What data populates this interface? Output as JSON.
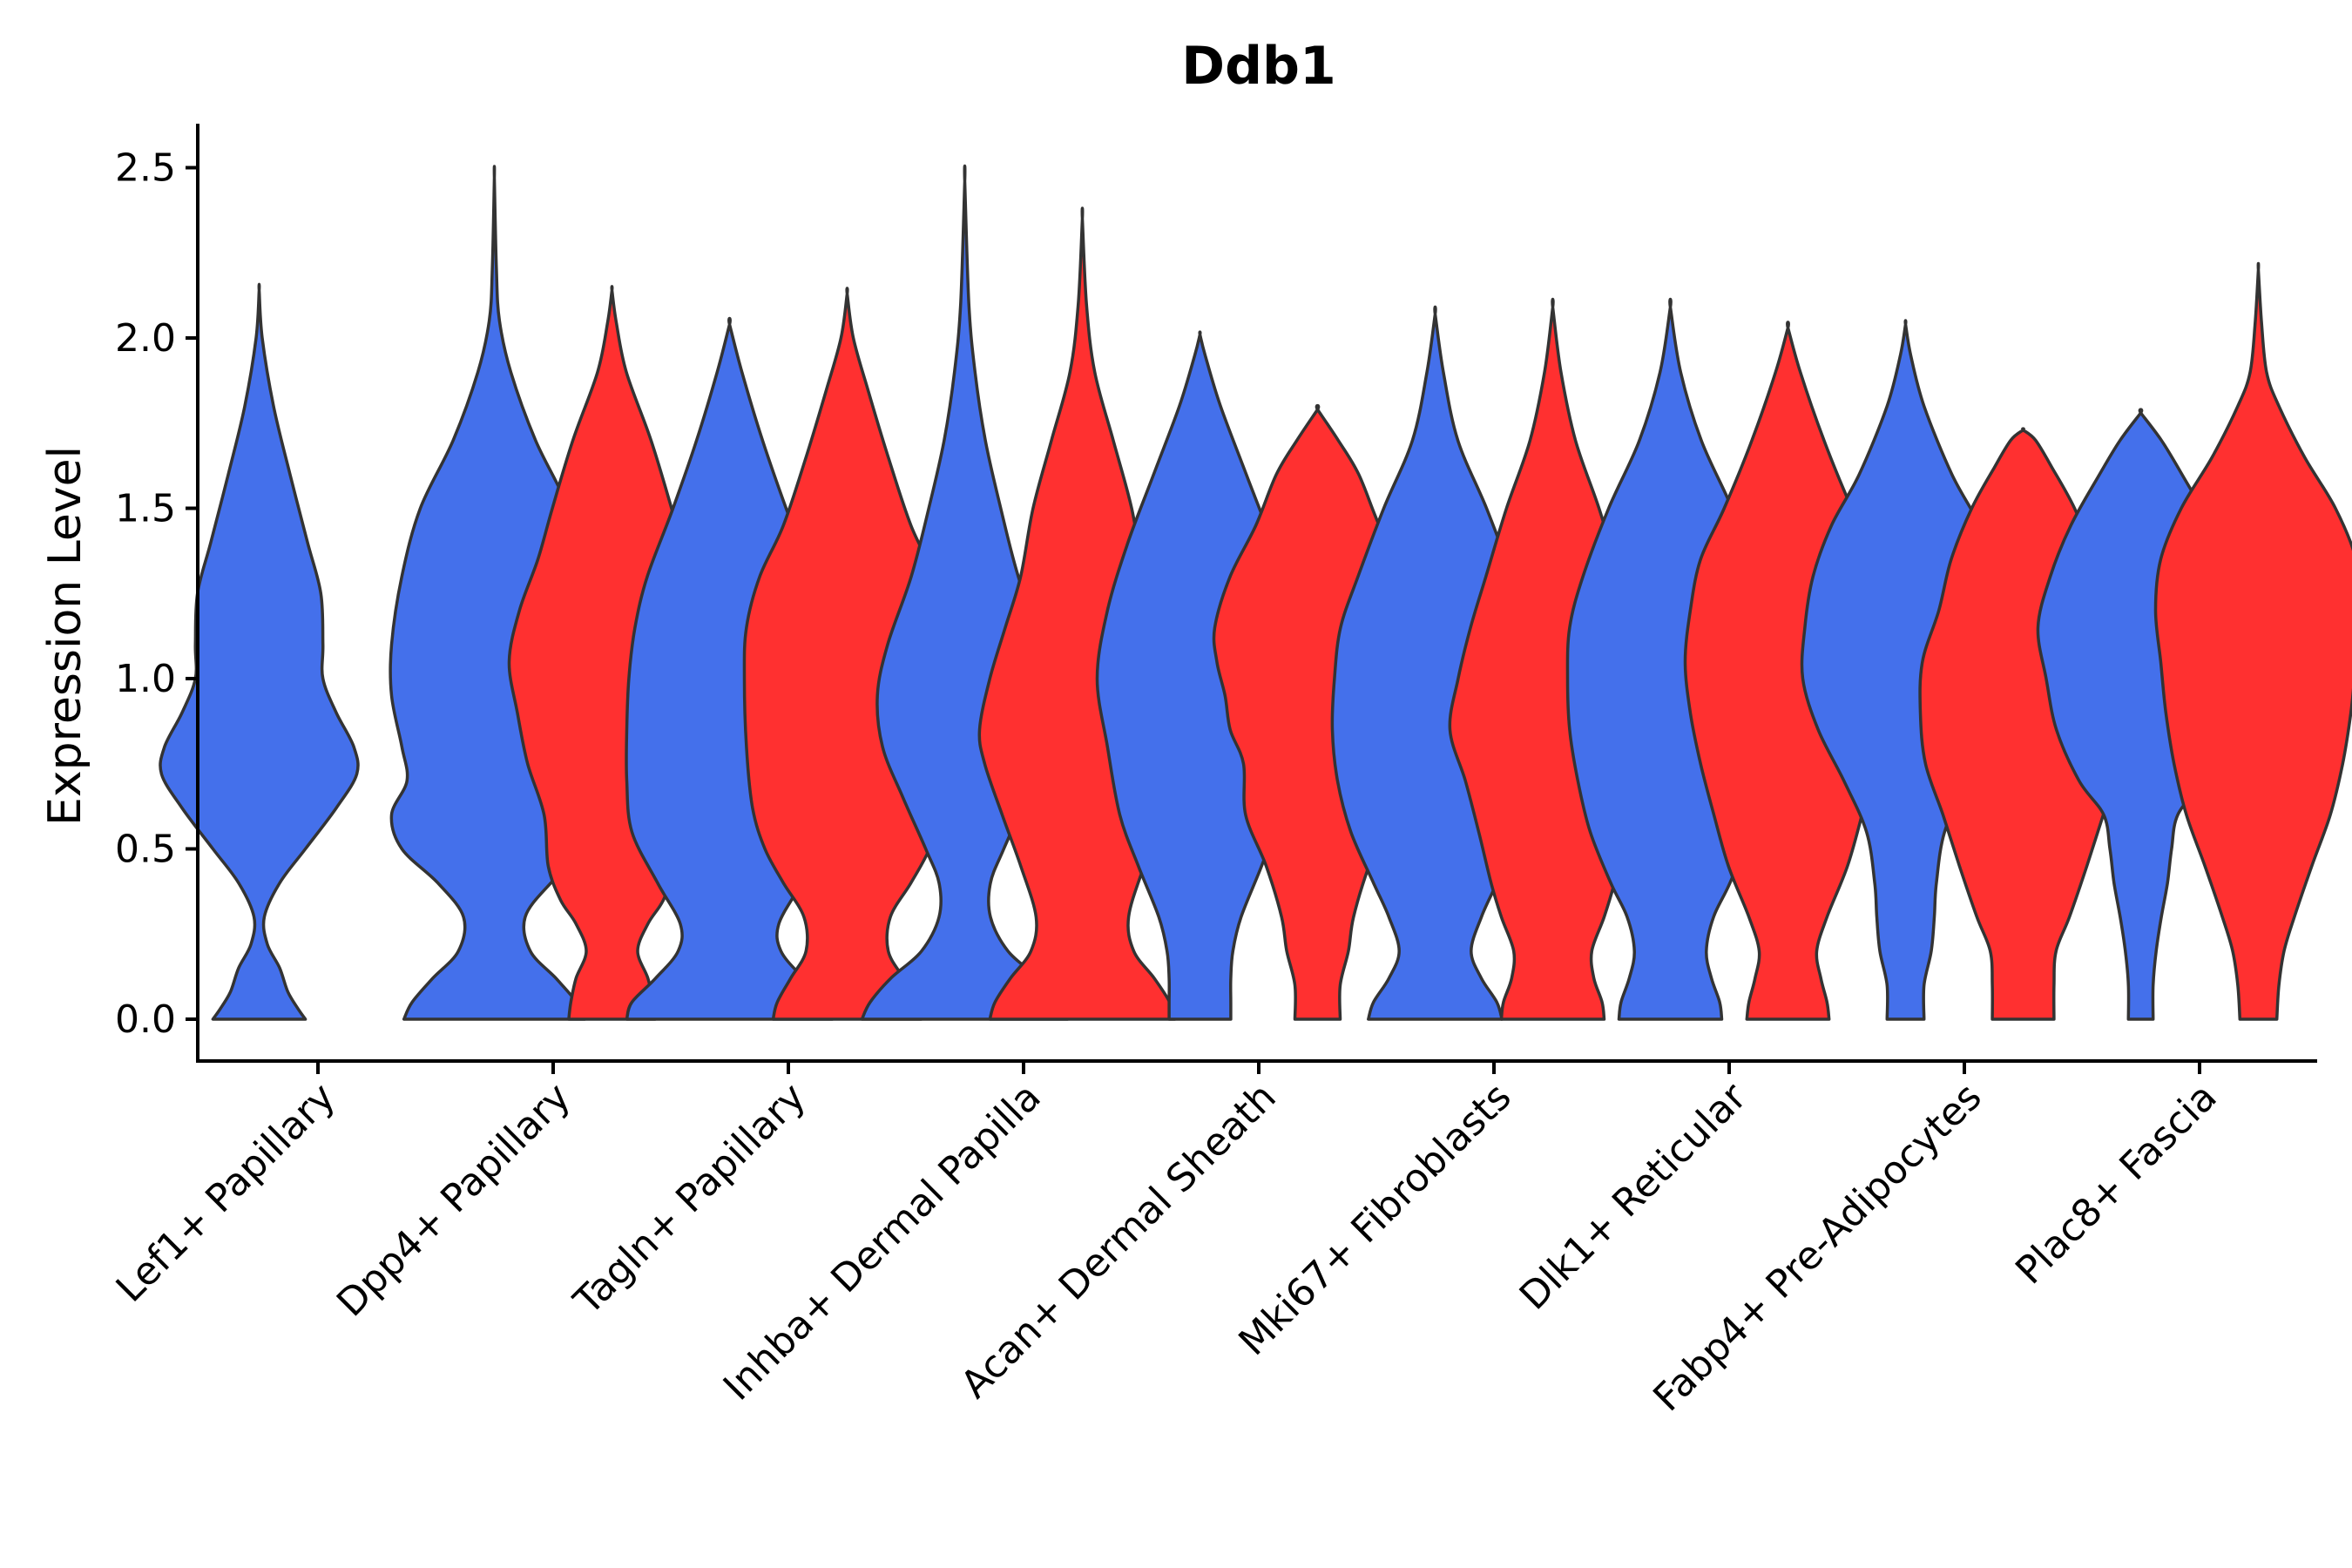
{
  "chart_data": {
    "type": "violin",
    "title": "Ddb1",
    "xlabel": "",
    "ylabel": "Expression Level",
    "ylim": [
      -0.12,
      2.6
    ],
    "yticks": [
      "0.0",
      "0.5",
      "1.0",
      "1.5",
      "2.0",
      "2.5"
    ],
    "ytick_values": [
      0.0,
      0.5,
      1.0,
      1.5,
      2.0,
      2.5
    ],
    "grid": false,
    "legend": "none",
    "groups": [
      {
        "name": "group-blue",
        "color": "#4470EB"
      },
      {
        "name": "group-red",
        "color": "#FF3030"
      }
    ],
    "categories": [
      "Lef1+ Papillary",
      "Dpp4+ Papillary",
      "Tagln+ Papillary",
      "Inhba+ Dermal Papilla",
      "Acan+ Dermal Sheath",
      "Mki67+ Fibroblasts",
      "Dlk1+ Reticular",
      "Fabp4+ Pre-Adipocytes",
      "Plac8+ Fascia"
    ],
    "violins": [
      {
        "category": "Lef1+ Papillary",
        "group": "group-blue",
        "max": 2.14,
        "profile": [
          [
            0.0,
            0.45
          ],
          [
            0.03,
            0.38
          ],
          [
            0.08,
            0.28
          ],
          [
            0.15,
            0.2
          ],
          [
            0.22,
            0.08
          ],
          [
            0.3,
            0.05
          ],
          [
            0.4,
            0.2
          ],
          [
            0.5,
            0.45
          ],
          [
            0.62,
            0.75
          ],
          [
            0.72,
            0.95
          ],
          [
            0.8,
            0.92
          ],
          [
            0.9,
            0.75
          ],
          [
            1.0,
            0.62
          ],
          [
            1.1,
            0.62
          ],
          [
            1.25,
            0.6
          ],
          [
            1.4,
            0.47
          ],
          [
            1.6,
            0.3
          ],
          [
            1.8,
            0.14
          ],
          [
            2.0,
            0.03
          ],
          [
            2.14,
            0.0
          ]
        ]
      },
      {
        "category": "Dpp4+ Papillary",
        "group": "group-blue",
        "max": 2.47,
        "profile": [
          [
            0.0,
            0.88
          ],
          [
            0.05,
            0.8
          ],
          [
            0.12,
            0.6
          ],
          [
            0.2,
            0.35
          ],
          [
            0.3,
            0.3
          ],
          [
            0.4,
            0.55
          ],
          [
            0.5,
            0.9
          ],
          [
            0.6,
            1.0
          ],
          [
            0.7,
            0.85
          ],
          [
            0.8,
            0.9
          ],
          [
            0.95,
            1.0
          ],
          [
            1.1,
            1.0
          ],
          [
            1.3,
            0.9
          ],
          [
            1.5,
            0.72
          ],
          [
            1.7,
            0.4
          ],
          [
            1.9,
            0.16
          ],
          [
            2.05,
            0.05
          ],
          [
            2.2,
            0.02
          ],
          [
            2.47,
            0.0
          ]
        ]
      },
      {
        "category": "Dpp4+ Papillary",
        "group": "group-red",
        "max": 2.14,
        "profile": [
          [
            0.0,
            0.42
          ],
          [
            0.05,
            0.4
          ],
          [
            0.12,
            0.35
          ],
          [
            0.2,
            0.25
          ],
          [
            0.28,
            0.35
          ],
          [
            0.35,
            0.5
          ],
          [
            0.45,
            0.62
          ],
          [
            0.6,
            0.66
          ],
          [
            0.75,
            0.82
          ],
          [
            0.9,
            0.92
          ],
          [
            1.05,
            1.0
          ],
          [
            1.2,
            0.9
          ],
          [
            1.35,
            0.72
          ],
          [
            1.5,
            0.58
          ],
          [
            1.7,
            0.38
          ],
          [
            1.9,
            0.14
          ],
          [
            2.05,
            0.04
          ],
          [
            2.14,
            0.0
          ]
        ]
      },
      {
        "category": "Tagln+ Papillary",
        "group": "group-blue",
        "max": 2.04,
        "profile": [
          [
            0.0,
            1.0
          ],
          [
            0.05,
            0.95
          ],
          [
            0.12,
            0.72
          ],
          [
            0.2,
            0.5
          ],
          [
            0.28,
            0.48
          ],
          [
            0.4,
            0.7
          ],
          [
            0.55,
            0.95
          ],
          [
            0.7,
            1.0
          ],
          [
            0.85,
            1.0
          ],
          [
            1.0,
            0.98
          ],
          [
            1.15,
            0.92
          ],
          [
            1.3,
            0.8
          ],
          [
            1.5,
            0.55
          ],
          [
            1.7,
            0.32
          ],
          [
            1.9,
            0.12
          ],
          [
            2.04,
            0.0
          ]
        ]
      },
      {
        "category": "Tagln+ Papillary",
        "group": "group-red",
        "max": 2.13,
        "profile": [
          [
            0.0,
            0.72
          ],
          [
            0.05,
            0.68
          ],
          [
            0.12,
            0.55
          ],
          [
            0.2,
            0.4
          ],
          [
            0.3,
            0.42
          ],
          [
            0.4,
            0.62
          ],
          [
            0.5,
            0.8
          ],
          [
            0.62,
            0.92
          ],
          [
            0.8,
            0.98
          ],
          [
            1.0,
            1.0
          ],
          [
            1.15,
            0.98
          ],
          [
            1.3,
            0.85
          ],
          [
            1.45,
            0.62
          ],
          [
            1.65,
            0.4
          ],
          [
            1.85,
            0.2
          ],
          [
            2.0,
            0.06
          ],
          [
            2.13,
            0.0
          ]
        ]
      },
      {
        "category": "Inhba+ Dermal Papilla",
        "group": "group-blue",
        "max": 2.46,
        "profile": [
          [
            0.0,
            1.0
          ],
          [
            0.05,
            0.92
          ],
          [
            0.12,
            0.72
          ],
          [
            0.2,
            0.42
          ],
          [
            0.3,
            0.25
          ],
          [
            0.4,
            0.25
          ],
          [
            0.5,
            0.38
          ],
          [
            0.65,
            0.6
          ],
          [
            0.8,
            0.8
          ],
          [
            0.95,
            0.85
          ],
          [
            1.1,
            0.75
          ],
          [
            1.3,
            0.52
          ],
          [
            1.5,
            0.35
          ],
          [
            1.7,
            0.2
          ],
          [
            1.9,
            0.1
          ],
          [
            2.1,
            0.04
          ],
          [
            2.46,
            0.0
          ]
        ]
      },
      {
        "category": "Inhba+ Dermal Papilla",
        "group": "group-red",
        "max": 2.35,
        "profile": [
          [
            0.0,
            0.9
          ],
          [
            0.05,
            0.85
          ],
          [
            0.12,
            0.7
          ],
          [
            0.2,
            0.5
          ],
          [
            0.3,
            0.45
          ],
          [
            0.45,
            0.6
          ],
          [
            0.6,
            0.78
          ],
          [
            0.75,
            0.95
          ],
          [
            0.85,
            1.0
          ],
          [
            1.0,
            0.9
          ],
          [
            1.15,
            0.75
          ],
          [
            1.3,
            0.6
          ],
          [
            1.5,
            0.48
          ],
          [
            1.7,
            0.3
          ],
          [
            1.9,
            0.12
          ],
          [
            2.1,
            0.04
          ],
          [
            2.35,
            0.0
          ]
        ]
      },
      {
        "category": "Acan+ Dermal Sheath",
        "group": "group-blue",
        "max": 2.01,
        "profile": [
          [
            0.0,
            0.3
          ],
          [
            0.05,
            0.3
          ],
          [
            0.12,
            0.3
          ],
          [
            0.2,
            0.32
          ],
          [
            0.3,
            0.4
          ],
          [
            0.45,
            0.6
          ],
          [
            0.6,
            0.78
          ],
          [
            0.8,
            0.9
          ],
          [
            1.0,
            1.0
          ],
          [
            1.2,
            0.9
          ],
          [
            1.4,
            0.7
          ],
          [
            1.6,
            0.45
          ],
          [
            1.8,
            0.2
          ],
          [
            1.95,
            0.05
          ],
          [
            2.01,
            0.0
          ]
        ]
      },
      {
        "category": "Acan+ Dermal Sheath",
        "group": "group-red",
        "max": 1.79,
        "profile": [
          [
            0.0,
            0.22
          ],
          [
            0.1,
            0.22
          ],
          [
            0.2,
            0.3
          ],
          [
            0.3,
            0.35
          ],
          [
            0.45,
            0.5
          ],
          [
            0.6,
            0.7
          ],
          [
            0.75,
            0.72
          ],
          [
            0.85,
            0.85
          ],
          [
            0.95,
            0.9
          ],
          [
            1.05,
            0.98
          ],
          [
            1.15,
            1.0
          ],
          [
            1.3,
            0.85
          ],
          [
            1.45,
            0.6
          ],
          [
            1.6,
            0.4
          ],
          [
            1.7,
            0.2
          ],
          [
            1.79,
            0.0
          ]
        ]
      },
      {
        "category": "Mki67+ Fibroblasts",
        "group": "group-blue",
        "max": 2.07,
        "profile": [
          [
            0.0,
            0.65
          ],
          [
            0.05,
            0.6
          ],
          [
            0.12,
            0.45
          ],
          [
            0.2,
            0.35
          ],
          [
            0.3,
            0.45
          ],
          [
            0.4,
            0.6
          ],
          [
            0.55,
            0.82
          ],
          [
            0.7,
            0.95
          ],
          [
            0.85,
            1.0
          ],
          [
            1.0,
            0.98
          ],
          [
            1.15,
            0.92
          ],
          [
            1.3,
            0.75
          ],
          [
            1.5,
            0.5
          ],
          [
            1.7,
            0.22
          ],
          [
            1.9,
            0.08
          ],
          [
            2.07,
            0.0
          ]
        ]
      },
      {
        "category": "Mki67+ Fibroblasts",
        "group": "group-red",
        "max": 2.09,
        "profile": [
          [
            0.0,
            0.5
          ],
          [
            0.05,
            0.48
          ],
          [
            0.12,
            0.4
          ],
          [
            0.2,
            0.38
          ],
          [
            0.3,
            0.5
          ],
          [
            0.4,
            0.6
          ],
          [
            0.55,
            0.72
          ],
          [
            0.7,
            0.85
          ],
          [
            0.85,
            1.0
          ],
          [
            1.0,
            0.92
          ],
          [
            1.15,
            0.8
          ],
          [
            1.3,
            0.65
          ],
          [
            1.5,
            0.45
          ],
          [
            1.7,
            0.22
          ],
          [
            1.9,
            0.08
          ],
          [
            2.09,
            0.0
          ]
        ]
      },
      {
        "category": "Dlk1+ Reticular",
        "group": "group-blue",
        "max": 2.09,
        "profile": [
          [
            0.0,
            0.5
          ],
          [
            0.05,
            0.48
          ],
          [
            0.12,
            0.4
          ],
          [
            0.2,
            0.35
          ],
          [
            0.3,
            0.42
          ],
          [
            0.4,
            0.58
          ],
          [
            0.55,
            0.78
          ],
          [
            0.7,
            0.9
          ],
          [
            0.85,
            0.98
          ],
          [
            1.0,
            1.0
          ],
          [
            1.15,
            0.98
          ],
          [
            1.3,
            0.85
          ],
          [
            1.5,
            0.6
          ],
          [
            1.7,
            0.3
          ],
          [
            1.9,
            0.1
          ],
          [
            2.09,
            0.0
          ]
        ]
      },
      {
        "category": "Dlk1+ Reticular",
        "group": "group-red",
        "max": 2.03,
        "profile": [
          [
            0.0,
            0.4
          ],
          [
            0.05,
            0.38
          ],
          [
            0.12,
            0.32
          ],
          [
            0.2,
            0.28
          ],
          [
            0.3,
            0.38
          ],
          [
            0.45,
            0.58
          ],
          [
            0.6,
            0.72
          ],
          [
            0.75,
            0.85
          ],
          [
            0.9,
            0.95
          ],
          [
            1.05,
            1.0
          ],
          [
            1.2,
            0.95
          ],
          [
            1.35,
            0.85
          ],
          [
            1.5,
            0.62
          ],
          [
            1.7,
            0.35
          ],
          [
            1.9,
            0.12
          ],
          [
            2.03,
            0.0
          ]
        ]
      },
      {
        "category": "Fabp4+ Pre-Adipocytes",
        "group": "group-blue",
        "max": 2.04,
        "profile": [
          [
            0.0,
            0.18
          ],
          [
            0.1,
            0.18
          ],
          [
            0.2,
            0.25
          ],
          [
            0.3,
            0.28
          ],
          [
            0.4,
            0.3
          ],
          [
            0.55,
            0.38
          ],
          [
            0.7,
            0.6
          ],
          [
            0.85,
            0.85
          ],
          [
            1.0,
            1.0
          ],
          [
            1.15,
            0.98
          ],
          [
            1.3,
            0.9
          ],
          [
            1.45,
            0.72
          ],
          [
            1.6,
            0.45
          ],
          [
            1.8,
            0.18
          ],
          [
            1.95,
            0.05
          ],
          [
            2.04,
            0.0
          ]
        ]
      },
      {
        "category": "Fabp4+ Pre-Adipocytes",
        "group": "group-red",
        "max": 1.73,
        "profile": [
          [
            0.0,
            0.3
          ],
          [
            0.1,
            0.3
          ],
          [
            0.2,
            0.32
          ],
          [
            0.3,
            0.45
          ],
          [
            0.45,
            0.62
          ],
          [
            0.6,
            0.78
          ],
          [
            0.75,
            0.95
          ],
          [
            0.9,
            1.0
          ],
          [
            1.05,
            0.98
          ],
          [
            1.2,
            0.82
          ],
          [
            1.35,
            0.7
          ],
          [
            1.5,
            0.5
          ],
          [
            1.62,
            0.28
          ],
          [
            1.7,
            0.12
          ],
          [
            1.73,
            0.0
          ]
        ]
      },
      {
        "category": "Plac8+ Fascia",
        "group": "group-blue",
        "max": 1.78,
        "profile": [
          [
            0.0,
            0.12
          ],
          [
            0.1,
            0.12
          ],
          [
            0.2,
            0.15
          ],
          [
            0.3,
            0.2
          ],
          [
            0.4,
            0.26
          ],
          [
            0.5,
            0.3
          ],
          [
            0.6,
            0.36
          ],
          [
            0.7,
            0.6
          ],
          [
            0.85,
            0.82
          ],
          [
            1.0,
            0.92
          ],
          [
            1.15,
            1.0
          ],
          [
            1.3,
            0.88
          ],
          [
            1.45,
            0.68
          ],
          [
            1.6,
            0.4
          ],
          [
            1.7,
            0.2
          ],
          [
            1.78,
            0.0
          ]
        ]
      },
      {
        "category": "Plac8+ Fascia",
        "group": "group-red",
        "max": 2.2,
        "profile": [
          [
            0.0,
            0.18
          ],
          [
            0.1,
            0.2
          ],
          [
            0.2,
            0.25
          ],
          [
            0.3,
            0.35
          ],
          [
            0.45,
            0.52
          ],
          [
            0.6,
            0.7
          ],
          [
            0.75,
            0.82
          ],
          [
            0.9,
            0.9
          ],
          [
            1.05,
            0.95
          ],
          [
            1.2,
            1.0
          ],
          [
            1.35,
            0.95
          ],
          [
            1.5,
            0.75
          ],
          [
            1.65,
            0.45
          ],
          [
            1.8,
            0.2
          ],
          [
            1.9,
            0.08
          ],
          [
            2.05,
            0.03
          ],
          [
            2.2,
            0.0
          ]
        ]
      }
    ]
  }
}
